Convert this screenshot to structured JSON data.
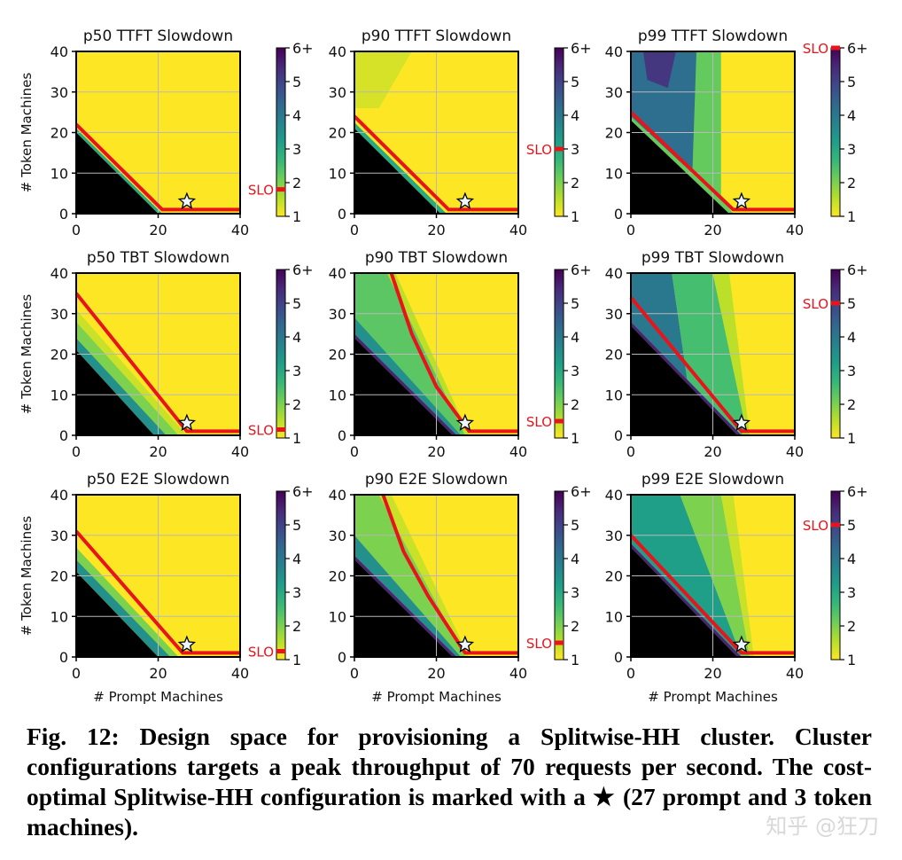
{
  "chart_data": {
    "type": "heatmap",
    "xlabel": "# Prompt Machines",
    "ylabel": "# Token Machines",
    "xlim": [
      0,
      40
    ],
    "ylim": [
      0,
      40
    ],
    "xticks": [
      "0",
      "20",
      "40"
    ],
    "yticks": [
      "0",
      "10",
      "20",
      "30",
      "40"
    ],
    "colorbar": {
      "range": [
        1,
        6
      ],
      "ticks": [
        "1",
        "2",
        "3",
        "4",
        "5",
        "6+"
      ],
      "colormap": "viridis_r"
    },
    "slo_label": "SLO",
    "slo_color": "#e8141c",
    "grid": true,
    "star": [
      27,
      3
    ],
    "panels": [
      {
        "title": "p50 TTFT Slowdown",
        "slo": 1.8,
        "infeasible": [
          [
            0,
            20
          ],
          [
            20,
            0
          ]
        ],
        "slo_curve": [
          [
            0,
            22
          ],
          [
            21,
            1
          ],
          [
            40,
            1
          ]
        ],
        "regions": [
          {
            "value": 3,
            "poly": [
              [
                0,
                20
              ],
              [
                0,
                21
              ],
              [
                21,
                0
              ],
              [
                20,
                0
              ]
            ]
          }
        ]
      },
      {
        "title": "p90 TTFT Slowdown",
        "slo": 3,
        "infeasible": [
          [
            0,
            21
          ],
          [
            21,
            0
          ]
        ],
        "slo_curve": [
          [
            0,
            24
          ],
          [
            23,
            1
          ],
          [
            40,
            1
          ]
        ],
        "regions": [
          {
            "value": 1.3,
            "poly": [
              [
                0,
                40
              ],
              [
                14,
                40
              ],
              [
                6,
                26
              ],
              [
                0,
                26
              ]
            ]
          },
          {
            "value": 3,
            "poly": [
              [
                0,
                21
              ],
              [
                0,
                22.5
              ],
              [
                22.5,
                0
              ],
              [
                21,
                0
              ]
            ]
          }
        ]
      },
      {
        "title": "p99 TTFT Slowdown",
        "slo": 6,
        "infeasible": [
          [
            0,
            23
          ],
          [
            24,
            0
          ]
        ],
        "slo_curve": [
          [
            0,
            25
          ],
          [
            25,
            1
          ],
          [
            40,
            1
          ]
        ],
        "regions": [
          {
            "value": 2.2,
            "poly": [
              [
                0,
                23
              ],
              [
                0,
                40
              ],
              [
                22,
                40
              ],
              [
                22,
                4
              ],
              [
                25,
                0
              ],
              [
                24,
                0
              ]
            ]
          },
          {
            "value": 4.2,
            "poly": [
              [
                0,
                24
              ],
              [
                0,
                40
              ],
              [
                16,
                40
              ],
              [
                15,
                10
              ]
            ]
          },
          {
            "value": 5.2,
            "poly": [
              [
                3,
                40
              ],
              [
                11,
                40
              ],
              [
                9,
                31
              ],
              [
                4,
                33
              ]
            ]
          }
        ]
      },
      {
        "title": "p50 TBT Slowdown",
        "slo": 1.25,
        "infeasible": [
          [
            0,
            21
          ],
          [
            19,
            0
          ]
        ],
        "slo_curve": [
          [
            0,
            35
          ],
          [
            27,
            1
          ],
          [
            40,
            1
          ]
        ],
        "regions": [
          {
            "value": 3.5,
            "poly": [
              [
                0,
                21
              ],
              [
                0,
                24
              ],
              [
                22,
                0
              ],
              [
                19,
                0
              ]
            ]
          },
          {
            "value": 2,
            "poly": [
              [
                0,
                24
              ],
              [
                0,
                28
              ],
              [
                25,
                0
              ],
              [
                22,
                0
              ]
            ]
          },
          {
            "value": 1.4,
            "poly": [
              [
                0,
                28
              ],
              [
                0,
                31
              ],
              [
                27,
                0
              ],
              [
                25,
                0
              ]
            ]
          }
        ]
      },
      {
        "title": "p90 TBT Slowdown",
        "slo": 1.5,
        "infeasible": [
          [
            0,
            24
          ],
          [
            24,
            0
          ]
        ],
        "slo_curve": [
          [
            9,
            40
          ],
          [
            14,
            25
          ],
          [
            20,
            12
          ],
          [
            28,
            1
          ],
          [
            40,
            1
          ]
        ],
        "regions": [
          {
            "value": 2.3,
            "poly": [
              [
                0,
                25
              ],
              [
                0,
                40
              ],
              [
                8,
                40
              ],
              [
                27,
                0
              ],
              [
                25,
                0
              ]
            ]
          },
          {
            "value": 1.5,
            "poly": [
              [
                8,
                40
              ],
              [
                10,
                40
              ],
              [
                28,
                0
              ],
              [
                27,
                0
              ]
            ]
          },
          {
            "value": 3.5,
            "poly": [
              [
                0,
                25
              ],
              [
                0,
                29
              ],
              [
                26,
                0
              ],
              [
                25,
                0
              ]
            ]
          },
          {
            "value": 5.5,
            "poly": [
              [
                0,
                24
              ],
              [
                0,
                25
              ],
              [
                25,
                0
              ],
              [
                24,
                0
              ]
            ]
          }
        ]
      },
      {
        "title": "p99 TBT Slowdown",
        "slo": 5,
        "infeasible": [
          [
            0,
            27
          ],
          [
            26,
            0
          ]
        ],
        "slo_curve": [
          [
            0,
            34
          ],
          [
            27,
            1
          ],
          [
            40,
            1
          ]
        ],
        "regions": [
          {
            "value": 4,
            "poly": [
              [
                0,
                28
              ],
              [
                0,
                40
              ],
              [
                10,
                40
              ],
              [
                14,
                12
              ],
              [
                27,
                0
              ]
            ]
          },
          {
            "value": 2.5,
            "poly": [
              [
                10,
                40
              ],
              [
                20,
                40
              ],
              [
                28,
                2
              ],
              [
                27,
                0
              ],
              [
                14,
                12
              ]
            ]
          },
          {
            "value": 1.5,
            "poly": [
              [
                20,
                40
              ],
              [
                24,
                40
              ],
              [
                29,
                0
              ],
              [
                27,
                0
              ],
              [
                28,
                2
              ]
            ]
          },
          {
            "value": 5.5,
            "poly": [
              [
                0,
                27
              ],
              [
                0,
                28
              ],
              [
                27,
                0
              ],
              [
                26,
                0
              ]
            ]
          }
        ]
      },
      {
        "title": "p50 E2E Slowdown",
        "slo": 1.25,
        "infeasible": [
          [
            0,
            21
          ],
          [
            20,
            0
          ]
        ],
        "slo_curve": [
          [
            0,
            31
          ],
          [
            26,
            1
          ],
          [
            40,
            1
          ]
        ],
        "regions": [
          {
            "value": 3.5,
            "poly": [
              [
                0,
                21
              ],
              [
                0,
                24
              ],
              [
                23,
                0
              ],
              [
                20,
                0
              ]
            ]
          },
          {
            "value": 2,
            "poly": [
              [
                0,
                24
              ],
              [
                0,
                27
              ],
              [
                25,
                0
              ],
              [
                23,
                0
              ]
            ]
          }
        ]
      },
      {
        "title": "p90 E2E Slowdown",
        "slo": 1.5,
        "infeasible": [
          [
            0,
            24
          ],
          [
            24,
            0
          ]
        ],
        "slo_curve": [
          [
            7,
            40
          ],
          [
            12,
            26
          ],
          [
            18,
            15
          ],
          [
            27,
            1
          ],
          [
            40,
            1
          ]
        ],
        "regions": [
          {
            "value": 2,
            "poly": [
              [
                0,
                30
              ],
              [
                0,
                40
              ],
              [
                6,
                40
              ],
              [
                27,
                0
              ],
              [
                26,
                0
              ]
            ]
          },
          {
            "value": 1.4,
            "poly": [
              [
                6,
                40
              ],
              [
                9,
                40
              ],
              [
                28,
                0
              ],
              [
                27,
                0
              ]
            ]
          },
          {
            "value": 3.5,
            "poly": [
              [
                0,
                25
              ],
              [
                0,
                30
              ],
              [
                26,
                0
              ],
              [
                25,
                0
              ]
            ]
          },
          {
            "value": 5.5,
            "poly": [
              [
                0,
                24
              ],
              [
                0,
                25
              ],
              [
                25,
                0
              ],
              [
                24,
                0
              ]
            ]
          }
        ]
      },
      {
        "title": "p99 E2E Slowdown",
        "slo": 5,
        "infeasible": [
          [
            0,
            27
          ],
          [
            26,
            0
          ]
        ],
        "slo_curve": [
          [
            0,
            30
          ],
          [
            27,
            1
          ],
          [
            40,
            1
          ]
        ],
        "regions": [
          {
            "value": 3.2,
            "poly": [
              [
                0,
                28
              ],
              [
                0,
                40
              ],
              [
                12,
                40
              ],
              [
                27,
                0
              ]
            ]
          },
          {
            "value": 2,
            "poly": [
              [
                12,
                40
              ],
              [
                22,
                40
              ],
              [
                29,
                0
              ],
              [
                27,
                0
              ]
            ]
          },
          {
            "value": 1.4,
            "poly": [
              [
                22,
                40
              ],
              [
                25,
                40
              ],
              [
                30,
                0
              ],
              [
                29,
                0
              ]
            ]
          },
          {
            "value": 5.5,
            "poly": [
              [
                0,
                27
              ],
              [
                0,
                28
              ],
              [
                27,
                0
              ],
              [
                26,
                0
              ]
            ]
          }
        ]
      }
    ]
  },
  "caption": {
    "text_before_star": "Fig. 12: Design space for provisioning a Splitwise-HH cluster. Cluster configurations targets a peak throughput of 70 requests per second. The cost-optimal Splitwise-HH configuration is marked with a",
    "star_symbol": "★",
    "text_after_star": "(27 prompt and 3 token machines)."
  },
  "watermark": "知乎 @狂刀"
}
